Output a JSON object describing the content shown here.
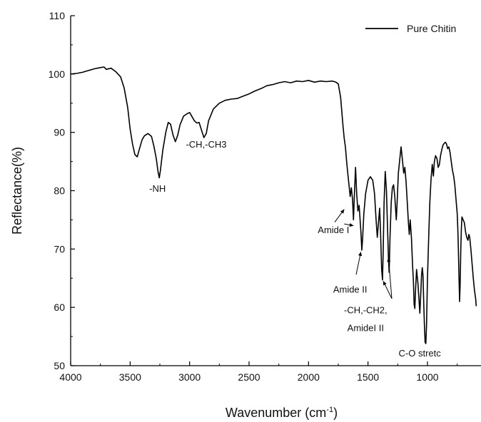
{
  "chart_data": {
    "type": "line",
    "xlabel": "Wavenumber (cm",
    "xlabel_sup": "-1",
    "xlabel_suffix": ")",
    "ylabel": "Reflectance(%)",
    "xlim": [
      4000,
      550
    ],
    "ylim": [
      50,
      110
    ],
    "x_reversed": true,
    "x_ticks": [
      4000,
      3500,
      3000,
      2500,
      2000,
      1500,
      1000
    ],
    "x_tick_labels": [
      "4000",
      "3500",
      "3000",
      "2500",
      "2000",
      "1500",
      "1000"
    ],
    "y_ticks": [
      50,
      60,
      70,
      80,
      90,
      100,
      110
    ],
    "y_tick_labels": [
      "50",
      "60",
      "70",
      "80",
      "90",
      "100",
      "110"
    ],
    "grid": false,
    "legend_position": "top-right",
    "line_color": "#000000",
    "series": [
      {
        "name": "Pure Chitin",
        "points": [
          [
            4000,
            100.0
          ],
          [
            3950,
            100.1
          ],
          [
            3900,
            100.3
          ],
          [
            3850,
            100.6
          ],
          [
            3800,
            100.9
          ],
          [
            3750,
            101.1
          ],
          [
            3720,
            101.2
          ],
          [
            3700,
            100.8
          ],
          [
            3660,
            101.0
          ],
          [
            3620,
            100.4
          ],
          [
            3580,
            99.5
          ],
          [
            3550,
            97.6
          ],
          [
            3520,
            94.2
          ],
          [
            3500,
            90.6
          ],
          [
            3480,
            88.0
          ],
          [
            3460,
            86.2
          ],
          [
            3440,
            85.8
          ],
          [
            3420,
            87.3
          ],
          [
            3400,
            88.7
          ],
          [
            3380,
            89.4
          ],
          [
            3350,
            89.8
          ],
          [
            3320,
            89.3
          ],
          [
            3300,
            87.6
          ],
          [
            3280,
            85.5
          ],
          [
            3265,
            83.2
          ],
          [
            3255,
            82.2
          ],
          [
            3245,
            83.5
          ],
          [
            3225,
            87.0
          ],
          [
            3200,
            90.0
          ],
          [
            3180,
            91.7
          ],
          [
            3160,
            91.4
          ],
          [
            3140,
            89.6
          ],
          [
            3120,
            88.4
          ],
          [
            3100,
            89.5
          ],
          [
            3080,
            91.3
          ],
          [
            3050,
            92.8
          ],
          [
            3020,
            93.2
          ],
          [
            3000,
            93.4
          ],
          [
            2960,
            92.0
          ],
          [
            2940,
            91.6
          ],
          [
            2920,
            91.7
          ],
          [
            2900,
            90.4
          ],
          [
            2880,
            89.1
          ],
          [
            2860,
            89.8
          ],
          [
            2840,
            92.0
          ],
          [
            2800,
            94.0
          ],
          [
            2750,
            95.0
          ],
          [
            2700,
            95.5
          ],
          [
            2650,
            95.7
          ],
          [
            2600,
            95.8
          ],
          [
            2550,
            96.2
          ],
          [
            2500,
            96.6
          ],
          [
            2450,
            97.1
          ],
          [
            2400,
            97.5
          ],
          [
            2350,
            98.0
          ],
          [
            2300,
            98.2
          ],
          [
            2250,
            98.5
          ],
          [
            2200,
            98.7
          ],
          [
            2150,
            98.5
          ],
          [
            2100,
            98.8
          ],
          [
            2050,
            98.7
          ],
          [
            2000,
            98.9
          ],
          [
            1950,
            98.6
          ],
          [
            1900,
            98.8
          ],
          [
            1850,
            98.7
          ],
          [
            1800,
            98.8
          ],
          [
            1770,
            98.6
          ],
          [
            1750,
            98.3
          ],
          [
            1730,
            96.0
          ],
          [
            1710,
            91.0
          ],
          [
            1700,
            89.0
          ],
          [
            1690,
            87.5
          ],
          [
            1680,
            85.0
          ],
          [
            1670,
            83.0
          ],
          [
            1660,
            81.0
          ],
          [
            1650,
            79.0
          ],
          [
            1640,
            80.5
          ],
          [
            1630,
            78.5
          ],
          [
            1622,
            75.0
          ],
          [
            1615,
            79.0
          ],
          [
            1605,
            84.0
          ],
          [
            1595,
            79.5
          ],
          [
            1585,
            76.5
          ],
          [
            1575,
            77.5
          ],
          [
            1560,
            73.0
          ],
          [
            1552,
            69.8
          ],
          [
            1545,
            72.0
          ],
          [
            1535,
            76.0
          ],
          [
            1520,
            79.5
          ],
          [
            1500,
            81.8
          ],
          [
            1480,
            82.4
          ],
          [
            1460,
            81.8
          ],
          [
            1445,
            79.5
          ],
          [
            1432,
            75.0
          ],
          [
            1422,
            72.0
          ],
          [
            1412,
            74.5
          ],
          [
            1402,
            77.0
          ],
          [
            1395,
            73.0
          ],
          [
            1385,
            66.5
          ],
          [
            1378,
            64.7
          ],
          [
            1372,
            70.0
          ],
          [
            1365,
            78.0
          ],
          [
            1355,
            83.3
          ],
          [
            1345,
            80.0
          ],
          [
            1335,
            73.0
          ],
          [
            1328,
            68.5
          ],
          [
            1322,
            66.0
          ],
          [
            1315,
            72.0
          ],
          [
            1305,
            78.0
          ],
          [
            1295,
            80.5
          ],
          [
            1285,
            81.0
          ],
          [
            1275,
            79.0
          ],
          [
            1262,
            75.0
          ],
          [
            1255,
            78.0
          ],
          [
            1245,
            83.0
          ],
          [
            1230,
            86.0
          ],
          [
            1222,
            87.5
          ],
          [
            1212,
            85.5
          ],
          [
            1200,
            83.0
          ],
          [
            1190,
            84.0
          ],
          [
            1180,
            81.5
          ],
          [
            1170,
            78.0
          ],
          [
            1160,
            74.5
          ],
          [
            1153,
            72.5
          ],
          [
            1145,
            75.0
          ],
          [
            1135,
            72.0
          ],
          [
            1125,
            67.0
          ],
          [
            1118,
            64.5
          ],
          [
            1112,
            60.5
          ],
          [
            1106,
            59.8
          ],
          [
            1100,
            63.0
          ],
          [
            1092,
            66.5
          ],
          [
            1080,
            64.0
          ],
          [
            1070,
            61.0
          ],
          [
            1064,
            59.0
          ],
          [
            1058,
            61.5
          ],
          [
            1050,
            65.5
          ],
          [
            1044,
            66.8
          ],
          [
            1038,
            65.5
          ],
          [
            1032,
            61.0
          ],
          [
            1026,
            57.0
          ],
          [
            1020,
            54.0
          ],
          [
            1014,
            53.8
          ],
          [
            1008,
            57.0
          ],
          [
            1000,
            65.0
          ],
          [
            990,
            72.0
          ],
          [
            980,
            78.0
          ],
          [
            970,
            82.0
          ],
          [
            960,
            84.5
          ],
          [
            950,
            82.5
          ],
          [
            942,
            85.0
          ],
          [
            932,
            86.0
          ],
          [
            920,
            85.5
          ],
          [
            910,
            84.0
          ],
          [
            900,
            84.5
          ],
          [
            890,
            86.0
          ],
          [
            880,
            87.0
          ],
          [
            870,
            87.8
          ],
          [
            860,
            88.1
          ],
          [
            850,
            88.3
          ],
          [
            840,
            88.0
          ],
          [
            830,
            87.2
          ],
          [
            820,
            87.5
          ],
          [
            810,
            86.5
          ],
          [
            800,
            85.0
          ],
          [
            790,
            83.5
          ],
          [
            780,
            82.5
          ],
          [
            770,
            81.0
          ],
          [
            760,
            78.5
          ],
          [
            750,
            76.0
          ],
          [
            745,
            73.5
          ],
          [
            740,
            70.0
          ],
          [
            735,
            65.0
          ],
          [
            730,
            61.0
          ],
          [
            725,
            64.0
          ],
          [
            720,
            70.0
          ],
          [
            715,
            73.5
          ],
          [
            710,
            75.5
          ],
          [
            700,
            75.0
          ],
          [
            690,
            74.5
          ],
          [
            680,
            73.0
          ],
          [
            670,
            72.0
          ],
          [
            660,
            71.5
          ],
          [
            652,
            72.5
          ],
          [
            645,
            72.0
          ],
          [
            635,
            70.0
          ],
          [
            625,
            67.5
          ],
          [
            615,
            65.0
          ],
          [
            605,
            63.0
          ],
          [
            595,
            61.5
          ],
          [
            590,
            60.2
          ]
        ]
      }
    ],
    "annotations": [
      {
        "text": "-NH",
        "x": 3270,
        "y": 79.8
      },
      {
        "text": "-CH,-CH3",
        "x": 2860,
        "y": 87.4
      },
      {
        "text": "Amide I",
        "x": 1790,
        "y": 72.7
      },
      {
        "text": "Amide II",
        "x": 1650,
        "y": 62.5
      },
      {
        "text": "-CH,-CH2,",
        "x": 1520,
        "y": 59.0
      },
      {
        "text": "AmideI II",
        "x": 1520,
        "y": 55.9
      },
      {
        "text": "C-O stretc",
        "x": 1065,
        "y": 51.6
      }
    ],
    "arrows": [
      {
        "from": [
          1780,
          74.6
        ],
        "to": [
          1700,
          76.8
        ]
      },
      {
        "from": [
          1700,
          74.3
        ],
        "to": [
          1622,
          74.0
        ]
      },
      {
        "from": [
          1600,
          65.6
        ],
        "to": [
          1560,
          69.5
        ]
      },
      {
        "from": [
          1300,
          61.5
        ],
        "to": [
          1372,
          64.5
        ]
      },
      {
        "from": [
          1300,
          61.5
        ],
        "to": [
          1328,
          68.5
        ]
      }
    ]
  }
}
